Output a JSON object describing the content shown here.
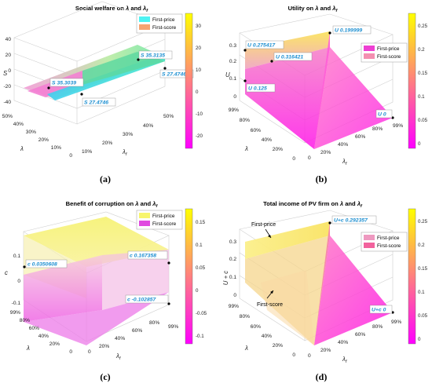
{
  "captions": [
    "(a)",
    "(b)",
    "(c)",
    "(d)"
  ],
  "colors": {
    "first_price_a": "#4df3f3",
    "first_score_a": "#f7a472",
    "first_price_b": "#ee3fd3",
    "first_score_b": "#f48fb1",
    "first_price_c": "#f7f56c",
    "first_score_c": "#e04be0",
    "first_price_d": "#ee99c0",
    "first_score_d": "#f2629d",
    "accent_label": "#1d8fd1"
  },
  "chart_data": [
    {
      "type": "surface",
      "title_parts": [
        "Social welfare on ",
        "λ",
        " and ",
        "λ",
        "f"
      ],
      "xlabel": "λ",
      "xlabel_sub": "f",
      "ylabel": "λ",
      "zlabel": "S",
      "x_ticks": [
        "10%",
        "20%",
        "30%",
        "40%",
        "50%"
      ],
      "y_ticks": [
        "0",
        "10%",
        "20%",
        "30%",
        "40%",
        "50%"
      ],
      "z_ticks": [
        "40",
        "20",
        "0",
        "-20",
        "-40"
      ],
      "zlim": [
        -40,
        40
      ],
      "colorbar": {
        "ticks": [
          "30",
          "20",
          "10",
          "0",
          "-10",
          "-20"
        ],
        "range": [
          -28,
          33
        ],
        "colors": [
          "#ff00ff",
          "#ffff00"
        ]
      },
      "legend": [
        "First-price",
        "First-score"
      ],
      "datatips": [
        {
          "label": "S",
          "value": "35.3039"
        },
        {
          "label": "S",
          "value": "35.3135"
        },
        {
          "label": "S",
          "value": "27.4746"
        },
        {
          "label": "S",
          "value": "27.4746"
        }
      ],
      "series": [
        {
          "name": "First-price",
          "values": [
            35.3039,
            35.3135
          ]
        },
        {
          "name": "First-score",
          "values": [
            27.4746,
            27.4746
          ]
        }
      ]
    },
    {
      "type": "surface",
      "title_parts": [
        "Utility on ",
        "λ",
        " and ",
        "λ",
        "f"
      ],
      "xlabel": "λ",
      "xlabel_sub": "f",
      "ylabel": "λ",
      "zlabel": "U",
      "x_ticks": [
        "0",
        "20%",
        "40%",
        "60%",
        "80%",
        "99%"
      ],
      "y_ticks": [
        "0",
        "20%",
        "40%",
        "60%",
        "80%",
        "99%"
      ],
      "z_ticks": [
        "0.3",
        "0.2",
        "0.1",
        "0"
      ],
      "zlim": [
        0,
        0.3
      ],
      "colorbar": {
        "ticks": [
          "0.25",
          "0.2",
          "0.15",
          "0.1",
          "0.05",
          "0"
        ],
        "range": [
          0,
          0.29
        ],
        "colors": [
          "#ff00ff",
          "#ffff00"
        ]
      },
      "legend": [
        "First-price",
        "First-score"
      ],
      "datatips": [
        {
          "label": "U",
          "value": "0.275417"
        },
        {
          "label": "U",
          "value": "0.199999"
        },
        {
          "label": "U",
          "value": "0.316421"
        },
        {
          "label": "U",
          "value": "0.125"
        },
        {
          "label": "U",
          "value": "0"
        }
      ],
      "series": [
        {
          "name": "First-price",
          "values": [
            0.275417,
            0.316421,
            0
          ]
        },
        {
          "name": "First-score",
          "values": [
            0.199999,
            0.125
          ]
        }
      ]
    },
    {
      "type": "surface",
      "title_parts": [
        "Benefit of corruption on ",
        "λ",
        " and ",
        "λ",
        "f"
      ],
      "xlabel": "λ",
      "xlabel_sub": "f",
      "ylabel": "λ",
      "zlabel": "c",
      "x_ticks": [
        "0",
        "20%",
        "40%",
        "60%",
        "80%",
        "99%"
      ],
      "y_ticks": [
        "0",
        "20%",
        "40%",
        "60%",
        "80%",
        "99%"
      ],
      "z_ticks": [
        "0.1",
        "0",
        "-0.1"
      ],
      "zlim": [
        -0.15,
        0.18
      ],
      "colorbar": {
        "ticks": [
          "0.15",
          "0.1",
          "0.05",
          "0",
          "-0.05",
          "-0.1"
        ],
        "range": [
          -0.12,
          0.17
        ],
        "colors": [
          "#ff00ff",
          "#ffff00"
        ]
      },
      "legend": [
        "First-price",
        "First-score"
      ],
      "datatips": [
        {
          "label": "c",
          "value": "0.0350608"
        },
        {
          "label": "c",
          "value": "0.167358"
        },
        {
          "label": "c",
          "value": "-0.102857"
        }
      ],
      "series": [
        {
          "name": "First-price",
          "values": [
            0.0350608,
            0.167358
          ]
        },
        {
          "name": "First-score",
          "values": [
            -0.102857
          ]
        }
      ]
    },
    {
      "type": "surface",
      "title_parts": [
        "Total income of PV firm on ",
        "λ",
        " and ",
        "λ",
        "f"
      ],
      "xlabel": "λ",
      "xlabel_sub": "f",
      "ylabel": "λ",
      "zlabel": "U + c",
      "x_ticks": [
        "0",
        "20%",
        "40%",
        "60%",
        "80%",
        "99%"
      ],
      "y_ticks": [
        "0",
        "20%",
        "40%",
        "60%",
        "80%",
        "99%"
      ],
      "z_ticks": [
        "0.3",
        "0.2",
        "0.1",
        "0"
      ],
      "zlim": [
        0,
        0.3
      ],
      "colorbar": {
        "ticks": [
          "0.25",
          "0.2",
          "0.15",
          "0.1",
          "0.05",
          "0"
        ],
        "range": [
          0,
          0.29
        ],
        "colors": [
          "#ff00ff",
          "#ffff00"
        ]
      },
      "legend": [
        "First-price",
        "First-score"
      ],
      "annotations": [
        "First-price",
        "First-score"
      ],
      "datatips": [
        {
          "label": "U+c",
          "value": "0.292357"
        },
        {
          "label": "U+c",
          "value": "0"
        }
      ],
      "series": [
        {
          "name": "First-price",
          "values": [
            0.292357
          ]
        },
        {
          "name": "First-score",
          "values": [
            0
          ]
        }
      ]
    }
  ]
}
